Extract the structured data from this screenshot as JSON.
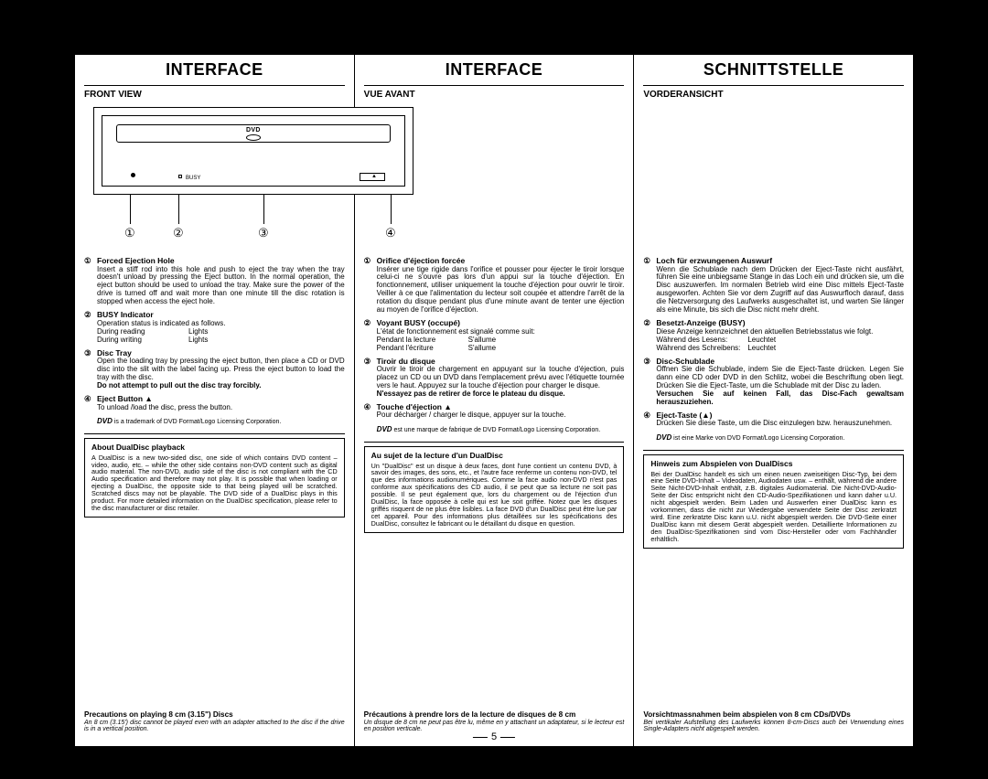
{
  "page_number": "5",
  "columns": [
    {
      "lang": "en",
      "heading": "INTERFACE",
      "subhead": "FRONT VIEW",
      "has_diagram": true,
      "diagram": {
        "busy_label": "BUSY",
        "logo_text": "DVD",
        "callouts": [
          "①",
          "②",
          "③",
          "④"
        ],
        "eject_glyph": "▲"
      },
      "items": [
        {
          "num": "①",
          "title": "Forced Ejection Hole",
          "body": "Insert a stiff rod into this hole and push to eject the tray when the tray doesn't unload by pressing the Eject button. In the normal operation, the eject button should be used to unload the tray. Make sure the power of the drive is turned off and wait more than one minute till the disc rotation is stopped when access the eject hole."
        },
        {
          "num": "②",
          "title": "BUSY Indicator",
          "body": "Operation status is indicated as follows.",
          "table": [
            [
              "During reading",
              "Lights"
            ],
            [
              "During writing",
              "Lights"
            ]
          ]
        },
        {
          "num": "③",
          "title": "Disc Tray",
          "body": "Open the loading tray by pressing the eject button, then place a CD or DVD disc into the slit with the label facing up. Press the eject button to load the tray with the disc.",
          "warn": "Do not attempt to pull out the disc tray forcibly."
        },
        {
          "num": "④",
          "title": "Eject Button ▲",
          "body": "To unload /load the disc, press the button."
        }
      ],
      "trademark": "is a trademark of DVD Format/Logo Licensing Corporation.",
      "box_title": "About DualDisc playback",
      "box_body": "A DualDisc is a new two-sided disc, one side of which contains DVD content – video, audio, etc. – while the other side contains non-DVD content such as digital audio material. The non-DVD, audio side of the disc is not compliant with the CD Audio specification and therefore may not play. It is possible that when loading or ejecting a DualDisc, the opposite side to that being played will be scratched. Scratched discs may not be playable. The DVD side of a DualDisc plays in this product. For more detailed information on the DualDisc specification, please refer to the disc manufacturer or disc retailer.",
      "precaution_title": "Precautions on playing 8 cm (3.15\") Discs",
      "precaution_body": "An 8 cm (3.15') disc cannot be played even with an adapter attached to the disc if the drive is in a vertical position."
    },
    {
      "lang": "fr",
      "heading": "INTERFACE",
      "subhead": "VUE AVANT",
      "has_diagram": false,
      "items": [
        {
          "num": "①",
          "title": "Orifice d'éjection forcée",
          "body": "Insérer une tige rigide dans l'orifice et pousser pour éjecter le tiroir lorsque celui-ci ne s'ouvre pas lors d'un appui sur la touche d'éjection. En fonctionnement, utiliser uniquement la touche d'éjection pour ouvrir le tiroir. Veiller à ce que l'alimentation du lecteur soit coupée et attendre l'arrêt de la rotation du disque pendant plus d'une minute avant de tenter une éjection au moyen de l'orifice d'éjection."
        },
        {
          "num": "②",
          "title": "Voyant BUSY (occupé)",
          "body": "L'état de fonctionnement est signalé comme suit:",
          "table": [
            [
              "Pendant la lecture",
              "S'allume"
            ],
            [
              "Pendant l'écriture",
              "S'allume"
            ]
          ]
        },
        {
          "num": "③",
          "title": "Tiroir du disque",
          "body": "Ouvrir le tiroir de chargement en appuyant sur la touche d'éjection, puis placez un CD ou un DVD dans l'emplacement prévu avec l'étiquette tournée vers le haut. Appuyez sur la touche d'éjection pour charger le disque.",
          "warn": "N'essayez pas de retirer de force le plateau du disque."
        },
        {
          "num": "④",
          "title": "Touche d'éjection ▲",
          "body": "Pour décharger / charger le disque, appuyer sur la touche."
        }
      ],
      "trademark": "est une marque de fabrique de DVD Format/Logo Licensing Corporation.",
      "box_title": "Au sujet de la lecture d'un DualDisc",
      "box_body": "Un \"DualDisc\" est un disque à deux faces, dont l'une contient un contenu DVD, à savoir des images, des sons, etc., et l'autre face renferme un contenu non-DVD, tel que des informations audionumériques. Comme la face audio non-DVD n'est pas conforme aux spécifications des CD audio, il se peut que sa lecture ne soit pas possible. Il se peut également que, lors du chargement ou de l'éjection d'un DualDisc, la face opposée à celle qui est lue soit griffée. Notez que les disques griffés risquent de ne plus être lisibles. La face DVD d'un DualDisc peut être lue par cet appareil. Pour des informations plus détaillées sur les spécifications des DualDisc, consultez le fabricant ou le détaillant du disque en question.",
      "precaution_title": "Précautions à prendre lors de la lecture de disques de 8 cm",
      "precaution_body": "Un disque de 8 cm ne peut pas être lu, même en y attachant un adaptateur, si le lecteur est en position verticale."
    },
    {
      "lang": "de",
      "heading": "SCHNITTSTELLE",
      "subhead": "VORDERANSICHT",
      "has_diagram": false,
      "items": [
        {
          "num": "①",
          "title": "Loch für erzwungenen Auswurf",
          "body": "Wenn die Schublade nach dem Drücken der Eject-Taste nicht ausfährt, führen Sie eine unbiegsame Stange in das Loch ein und drücken sie, um die Disc auszuwerfen. Im normalen Betrieb wird eine Disc mittels Eject-Taste ausgeworfen. Achten Sie vor dem Zugriff auf das Auswurfloch darauf, dass die Netzversorgung des Laufwerks ausgeschaltet ist, und warten Sie länger als eine Minute, bis sich die Disc nicht mehr dreht."
        },
        {
          "num": "②",
          "title": "Besetzt-Anzeige (BUSY)",
          "body": "Diese Anzeige kennzeichnet den aktuellen Betriebsstatus wie folgt.",
          "table": [
            [
              "Während des Lesens:",
              "Leuchtet"
            ],
            [
              "Während des Schreibens:",
              "Leuchtet"
            ]
          ]
        },
        {
          "num": "③",
          "title": "Disc-Schublade",
          "body": "Öffnen Sie die Schublade, indem Sie die Eject-Taste drücken. Legen Sie dann eine CD oder DVD in den Schlitz, wobei die Beschriftung oben liegt. Drücken Sie die Eject-Taste, um die Schublade mit der Disc zu laden.",
          "warn": "Versuchen Sie auf keinen Fall, das Disc-Fach gewaltsam herauszuziehen."
        },
        {
          "num": "④",
          "title": "Eject-Taste (▲)",
          "body": "Drücken Sie diese Taste, um die Disc einzulegen bzw. herauszunehmen."
        }
      ],
      "trademark": "ist eine Marke von DVD Format/Logo Licensing Corporation.",
      "box_title": "Hinweis zum Abspielen von DualDiscs",
      "box_body": "Bei der DualDisc handelt es sich um einen neuen zweiseitigen Disc-Typ, bei dem eine Seite DVD-Inhalt – Videodaten, Audiodaten usw. – enthält, während die andere Seite Nicht-DVD-Inhalt enthält, z.B. digitales Audiomaterial. Die Nicht-DVD-Audio-Seite der Disc entspricht nicht den CD-Audio-Spezifikationen und kann daher u.U. nicht abgespielt werden. Beim Laden und Auswerfen einer DualDisc kann es vorkommen, dass die nicht zur Wiedergabe verwendete Seite der Disc zerkratzt wird. Eine zerkratzte Disc kann u.U. nicht abgespielt werden. Die DVD-Seite einer DualDisc kann mit diesem Gerät abgespielt werden. Detaillierte Informationen zu den DualDisc-Spezifikationen sind vom Disc-Hersteller oder vom Fachhändler erhältlich.",
      "precaution_title": "Vorsichtmassnahmen beim abspielen von 8 cm CDs/DVDs",
      "precaution_body": "Bei vertikaler Aufstellung des Laufwerks können 8-cm-Discs auch bei Verwendung eines Single-Adapters nicht abgespielt werden."
    }
  ]
}
